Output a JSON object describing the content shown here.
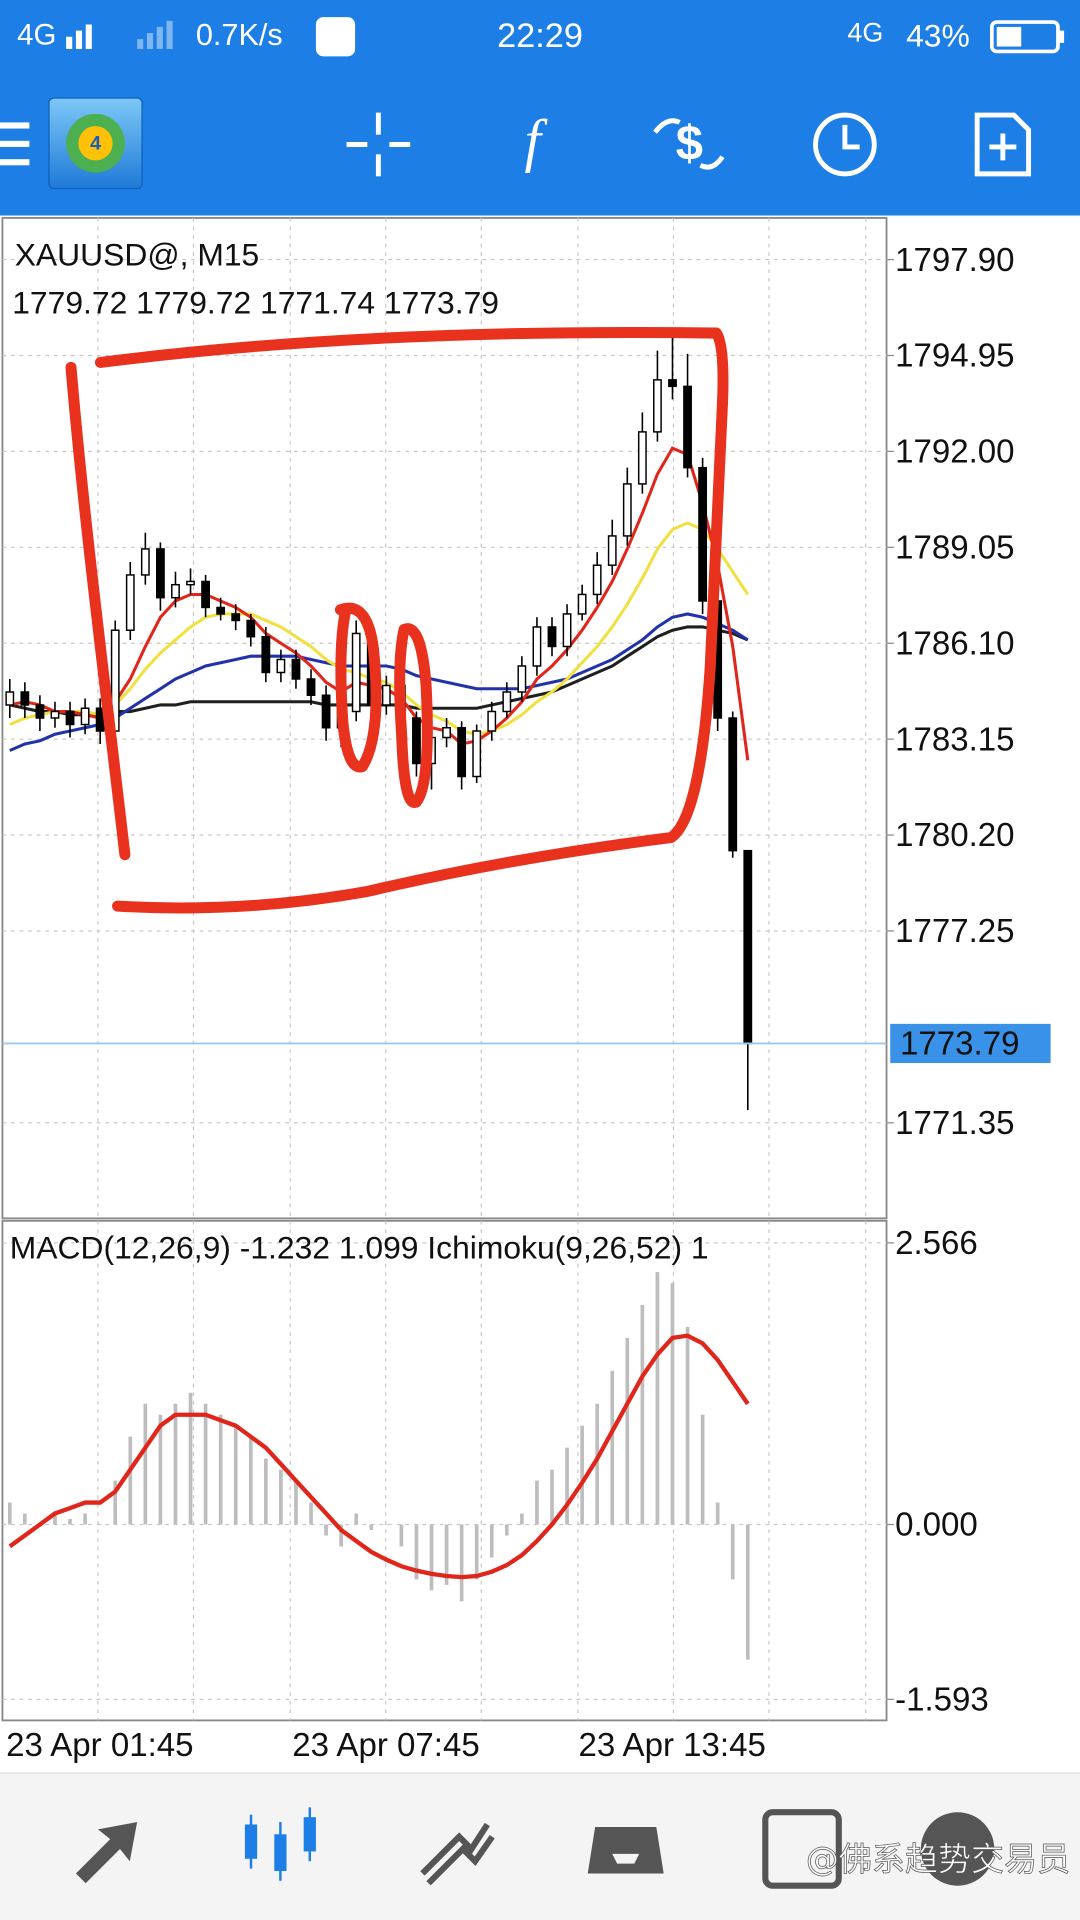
{
  "status_bar": {
    "network": "4G",
    "speed": "0.7K/s",
    "time": "22:29",
    "network2": "4G",
    "battery": "43%"
  },
  "chart_data": [
    {
      "type": "candlestick",
      "title": "XAUUSD@, M15",
      "subtitle": "1779.72 1779.72 1771.74 1773.79",
      "categories": [
        "23 Apr 01:45",
        null,
        null,
        null,
        null,
        null,
        null,
        null,
        null,
        null,
        null,
        null,
        null,
        null,
        null,
        null,
        null,
        null,
        null,
        "23 Apr 07:45",
        null,
        null,
        null,
        null,
        null,
        null,
        null,
        null,
        null,
        null,
        null,
        null,
        null,
        null,
        null,
        null,
        null,
        null,
        "23 Apr 13:45",
        null,
        null,
        null,
        null,
        null,
        null,
        null,
        null,
        null,
        null,
        null
      ],
      "open": [
        1784.2,
        1784.6,
        1784.2,
        1783.8,
        1784.0,
        1783.6,
        1784.1,
        1783.4,
        1786.5,
        1788.2,
        1789.0,
        1787.5,
        1787.9,
        1788.0,
        1787.2,
        1787.0,
        1786.8,
        1786.3,
        1785.2,
        1785.6,
        1785.0,
        1784.5,
        1783.5,
        1784.0,
        1786.4,
        1784.2,
        1784.8,
        1783.8,
        1782.4,
        1783.2,
        1783.5,
        1782.0,
        1783.4,
        1784.0,
        1784.6,
        1785.4,
        1786.6,
        1786.0,
        1787.0,
        1787.6,
        1788.5,
        1789.4,
        1791.0,
        1792.6,
        1794.2,
        1794.0,
        1791.5,
        1787.4,
        1783.8,
        1779.72
      ],
      "high": [
        1785.0,
        1784.9,
        1784.5,
        1784.3,
        1784.3,
        1784.4,
        1784.4,
        1786.8,
        1788.6,
        1789.5,
        1789.2,
        1788.3,
        1788.4,
        1788.2,
        1787.5,
        1787.3,
        1787.0,
        1786.6,
        1785.9,
        1785.9,
        1785.3,
        1784.8,
        1784.2,
        1786.8,
        1786.7,
        1785.1,
        1785.1,
        1784.0,
        1783.5,
        1783.8,
        1783.7,
        1783.6,
        1784.3,
        1784.9,
        1785.7,
        1786.9,
        1786.9,
        1787.3,
        1787.9,
        1788.9,
        1789.9,
        1791.5,
        1793.2,
        1795.1,
        1795.5,
        1795.0,
        1791.8,
        1787.6,
        1784.0,
        1779.72
      ],
      "low": [
        1783.8,
        1783.8,
        1783.4,
        1783.5,
        1783.2,
        1783.3,
        1783.0,
        1783.2,
        1786.2,
        1787.9,
        1787.1,
        1787.2,
        1787.6,
        1786.9,
        1786.8,
        1786.5,
        1786.0,
        1784.9,
        1784.9,
        1784.7,
        1784.2,
        1783.1,
        1782.9,
        1783.7,
        1783.8,
        1783.9,
        1783.5,
        1782.0,
        1781.6,
        1782.9,
        1781.6,
        1781.8,
        1783.1,
        1783.8,
        1784.3,
        1785.1,
        1785.7,
        1785.7,
        1786.8,
        1787.3,
        1788.2,
        1789.1,
        1790.7,
        1792.3,
        1793.6,
        1791.2,
        1787.0,
        1783.4,
        1779.5,
        1771.74
      ],
      "close": [
        1784.6,
        1784.2,
        1783.8,
        1784.0,
        1783.6,
        1784.1,
        1783.4,
        1786.5,
        1788.2,
        1789.0,
        1787.5,
        1787.9,
        1788.0,
        1787.2,
        1787.0,
        1786.8,
        1786.3,
        1785.2,
        1785.6,
        1785.0,
        1784.5,
        1783.5,
        1784.0,
        1786.4,
        1784.2,
        1784.8,
        1783.8,
        1782.4,
        1783.2,
        1783.5,
        1782.0,
        1783.4,
        1784.0,
        1784.6,
        1785.4,
        1786.6,
        1786.0,
        1787.0,
        1787.6,
        1788.5,
        1789.4,
        1791.0,
        1792.6,
        1794.2,
        1794.0,
        1791.5,
        1787.4,
        1783.8,
        1779.72,
        1773.79
      ],
      "series": [
        {
          "color": "#1f1f1f",
          "values": [
            1784.2,
            1784.1,
            1784.0,
            1784.0,
            1783.9,
            1783.9,
            1783.9,
            1784.0,
            1784.0,
            1784.1,
            1784.2,
            1784.2,
            1784.3,
            1784.3,
            1784.3,
            1784.3,
            1784.3,
            1784.3,
            1784.3,
            1784.3,
            1784.3,
            1784.2,
            1784.2,
            1784.2,
            1784.2,
            1784.2,
            1784.2,
            1784.1,
            1784.1,
            1784.1,
            1784.1,
            1784.1,
            1784.2,
            1784.3,
            1784.4,
            1784.5,
            1784.6,
            1784.8,
            1785.0,
            1785.2,
            1785.4,
            1785.7,
            1786.0,
            1786.3,
            1786.5,
            1786.6,
            1786.6,
            1786.5,
            1786.4,
            1786.2
          ]
        },
        {
          "color": "#2233aa",
          "values": [
            1782.8,
            1783.0,
            1783.1,
            1783.3,
            1783.4,
            1783.5,
            1783.6,
            1783.8,
            1784.1,
            1784.4,
            1784.7,
            1785.0,
            1785.2,
            1785.4,
            1785.5,
            1785.6,
            1785.7,
            1785.7,
            1785.7,
            1785.7,
            1785.6,
            1785.5,
            1785.4,
            1785.4,
            1785.4,
            1785.4,
            1785.3,
            1785.1,
            1785.0,
            1784.9,
            1784.8,
            1784.7,
            1784.7,
            1784.7,
            1784.7,
            1784.8,
            1784.9,
            1785.0,
            1785.2,
            1785.4,
            1785.6,
            1785.9,
            1786.2,
            1786.6,
            1786.9,
            1787.0,
            1786.9,
            1786.7,
            1786.5,
            1786.2
          ]
        },
        {
          "color": "#f0e040",
          "values": [
            1783.6,
            1783.8,
            1783.9,
            1784.0,
            1784.0,
            1784.0,
            1783.9,
            1784.2,
            1784.7,
            1785.3,
            1785.8,
            1786.2,
            1786.6,
            1786.9,
            1787.0,
            1787.0,
            1787.0,
            1786.8,
            1786.6,
            1786.3,
            1786.0,
            1785.6,
            1785.3,
            1785.2,
            1785.0,
            1784.9,
            1784.6,
            1784.2,
            1783.9,
            1783.7,
            1783.4,
            1783.3,
            1783.4,
            1783.6,
            1783.9,
            1784.3,
            1784.6,
            1785.0,
            1785.5,
            1786.0,
            1786.6,
            1787.3,
            1788.1,
            1789.0,
            1789.6,
            1789.8,
            1789.6,
            1789.0,
            1788.3,
            1787.6
          ]
        },
        {
          "color": "#e0261b",
          "values": [
            1784.2,
            1784.3,
            1784.2,
            1784.0,
            1784.0,
            1783.9,
            1783.8,
            1784.3,
            1785.0,
            1786.0,
            1786.9,
            1787.4,
            1787.6,
            1787.6,
            1787.4,
            1787.2,
            1786.9,
            1786.4,
            1786.1,
            1785.8,
            1785.4,
            1784.9,
            1784.6,
            1784.9,
            1784.8,
            1784.7,
            1784.4,
            1783.8,
            1783.5,
            1783.4,
            1783.0,
            1783.1,
            1783.4,
            1783.8,
            1784.3,
            1785.0,
            1785.4,
            1785.9,
            1786.5,
            1787.2,
            1788.0,
            1789.0,
            1790.1,
            1791.3,
            1792.1,
            1791.9,
            1790.4,
            1788.5,
            1786.0,
            1782.5
          ]
        }
      ],
      "current_price": 1773.79,
      "ylim": [
        1768.41,
        1799.18
      ],
      "yticks": [
        {
          "value": 1797.9,
          "label": "1797.90"
        },
        1794.95,
        {
          "value": 1792,
          "label": "1792.00"
        },
        1789.05,
        {
          "value": 1786.1,
          "label": "1786.10"
        },
        1783.15,
        {
          "value": 1780.2,
          "label": "1780.20"
        },
        1777.25,
        1771.35
      ],
      "grid": true
    },
    {
      "type": "macd",
      "title": "MACD(12,26,9) -1.232 1.099 Ichimoku(9,26,52) 1",
      "histogram": {
        "color": "#bdbdbd",
        "values": [
          0.2,
          0.1,
          0.0,
          0.1,
          0.05,
          0.1,
          0.0,
          0.4,
          0.8,
          1.1,
          1.0,
          1.1,
          1.2,
          1.1,
          1.0,
          0.9,
          0.8,
          0.6,
          0.5,
          0.4,
          0.2,
          -0.1,
          -0.2,
          0.1,
          -0.05,
          0.0,
          -0.2,
          -0.5,
          -0.6,
          -0.55,
          -0.7,
          -0.5,
          -0.3,
          -0.1,
          0.1,
          0.4,
          0.5,
          0.7,
          0.9,
          1.1,
          1.4,
          1.7,
          2.0,
          2.3,
          2.2,
          1.8,
          1.0,
          0.2,
          -0.5,
          -1.232
        ]
      },
      "series": [
        {
          "color": "#e0261b",
          "values": [
            -0.2,
            -0.1,
            0.0,
            0.1,
            0.15,
            0.2,
            0.2,
            0.3,
            0.5,
            0.7,
            0.9,
            1.0,
            1.0,
            1.0,
            0.95,
            0.9,
            0.8,
            0.7,
            0.55,
            0.4,
            0.25,
            0.1,
            -0.05,
            -0.15,
            -0.25,
            -0.32,
            -0.38,
            -0.42,
            -0.45,
            -0.47,
            -0.48,
            -0.47,
            -0.43,
            -0.37,
            -0.28,
            -0.15,
            0.0,
            0.18,
            0.38,
            0.6,
            0.85,
            1.1,
            1.35,
            1.55,
            1.7,
            1.72,
            1.65,
            1.5,
            1.3,
            1.099
          ]
        }
      ],
      "ylim": [
        -1.785,
        2.767
      ],
      "yticks": [
        2.566,
        {
          "value": 0,
          "label": "0.000"
        },
        -1.593
      ],
      "grid": true
    }
  ],
  "watermark": "@佛系趋势交易员"
}
